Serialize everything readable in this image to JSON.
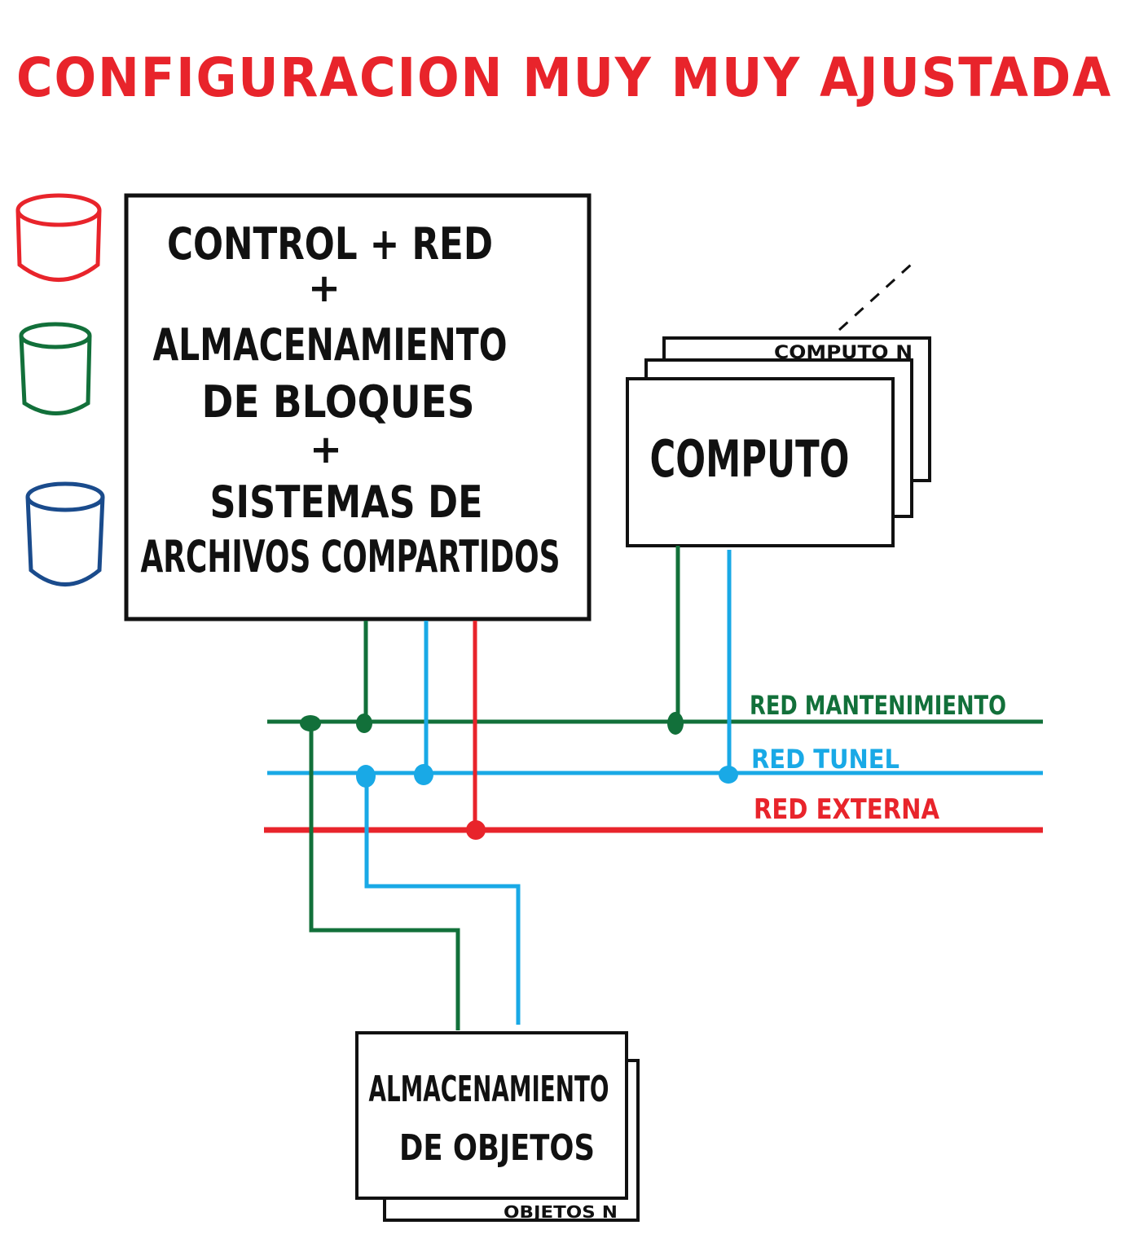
{
  "title": "CONFIGURACION MUY MUY AJUSTADA",
  "colors": {
    "title": "#e8242b",
    "box": "#111111",
    "red_mantenimiento": "#12703a",
    "red_tunel": "#19a9e6",
    "red_externa": "#e8242b"
  },
  "legend_cylinders": [
    {
      "name": "red-cylinder-icon",
      "color": "#e8242b"
    },
    {
      "name": "green-cylinder-icon",
      "color": "#12703a"
    },
    {
      "name": "blue-cylinder-icon",
      "color": "#1a4b8c"
    }
  ],
  "control_box": {
    "line1": "CONTROL + RED",
    "plus1": "+",
    "line2": "ALMACENAMIENTO",
    "line3": "DE BLOQUES",
    "plus2": "+",
    "line4": "SISTEMAS DE",
    "line5": "ARCHIVOS COMPARTIDOS"
  },
  "compute": {
    "label": "COMPUTO",
    "stack_label": "COMPUTO N"
  },
  "networks": {
    "mantenimiento": "RED MANTENIMIENTO",
    "tunel": "RED TUNEL",
    "externa": "RED EXTERNA"
  },
  "object_storage": {
    "line1": "ALMACENAMIENTO",
    "line2": "DE OBJETOS",
    "stack_label": "OBJETOS N"
  }
}
